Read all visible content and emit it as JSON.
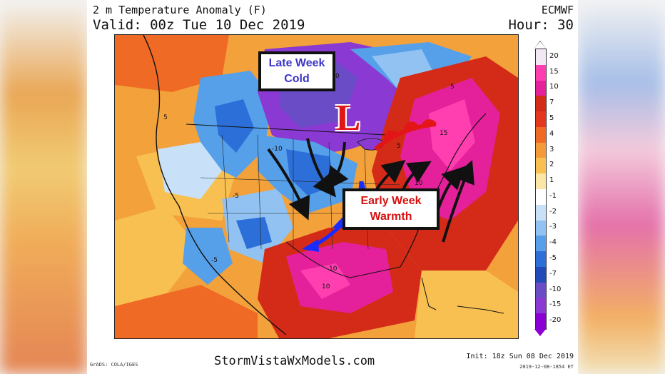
{
  "header": {
    "title": "2 m Temperature Anomaly (F)",
    "valid": "Valid: 00z Tue 10 Dec 2019",
    "model": "ECMWF",
    "hour": "Hour: 30"
  },
  "annotations": {
    "cold_line1": "Late Week",
    "cold_line2": "Cold",
    "warm_line1": "Early Week",
    "warm_line2": "Warmth",
    "low_symbol": "L"
  },
  "colorbar": {
    "labels": [
      "20",
      "15",
      "10",
      "7",
      "5",
      "4",
      "3",
      "2",
      "1",
      "-1",
      "-2",
      "-3",
      "-4",
      "-5",
      "-7",
      "-10",
      "-15",
      "-20"
    ],
    "colors": [
      "#f2e8f4",
      "#ff3fb0",
      "#e4209a",
      "#d42b18",
      "#e4371e",
      "#ef6a25",
      "#f39a3a",
      "#f8c050",
      "#fbe6a6",
      "#ffffff",
      "#c9e1f8",
      "#91c2f2",
      "#56a0ea",
      "#2c6fd8",
      "#2449b8",
      "#6a4cc6",
      "#8a3ad2",
      "#8a00d4"
    ]
  },
  "map": {
    "contour_labels": [
      "5",
      "-5",
      "10",
      "-10",
      "15",
      "5",
      "-5",
      "10",
      "5",
      "-10",
      "10"
    ]
  },
  "footer": {
    "site": "StormVistaWxModels.com",
    "init": "Init: 18z Sun 08 Dec 2019",
    "stamp": "2019-12-08-1854 ET",
    "credit": "GrADS: COLA/IGES"
  }
}
